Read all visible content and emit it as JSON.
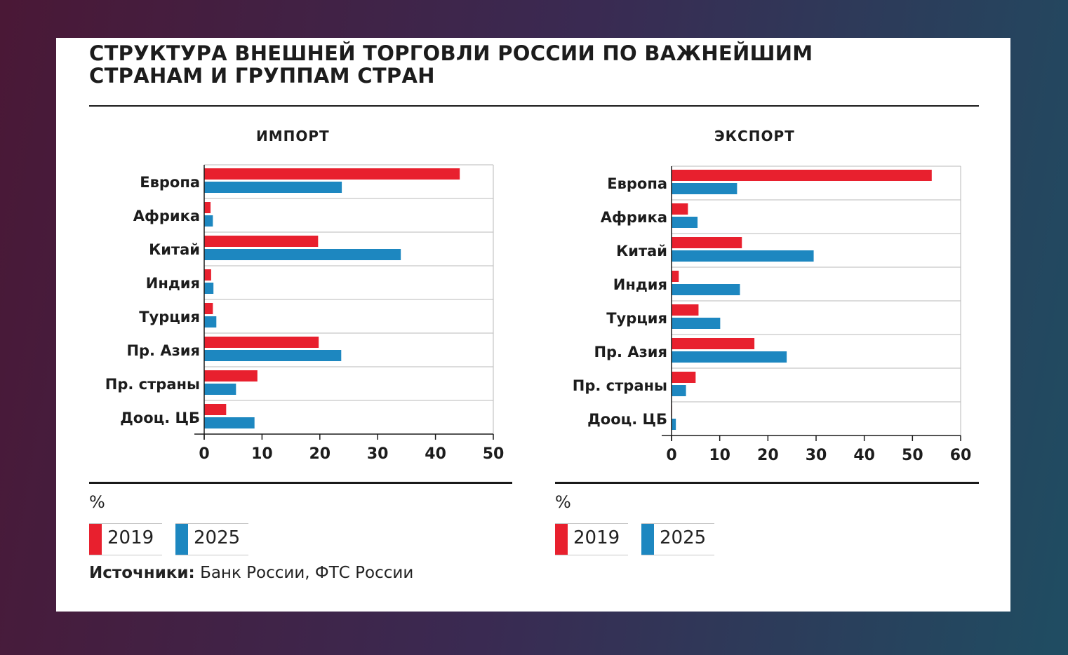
{
  "title": "СТРУКТУРА ВНЕШНЕЙ ТОРГОВЛИ РОССИИ ПО ВАЖНЕЙШИМ СТРАНАМ И ГРУППАМ СТРАН",
  "unit": "%",
  "source_label": "Источники:",
  "source_text": "Банк России, ФТС России",
  "colors": {
    "y2019": "#e8202e",
    "y2025": "#1d87c0"
  },
  "legend": [
    {
      "label": "2019",
      "color": "#e8202e"
    },
    {
      "label": "2025",
      "color": "#1d87c0"
    }
  ],
  "chart_data": [
    {
      "type": "bar",
      "orientation": "horizontal",
      "title": "ИМПОРТ",
      "categories": [
        "Европа",
        "Африка",
        "Китай",
        "Индия",
        "Турция",
        "Пр. Азия",
        "Пр. страны",
        "Дооц. ЦБ"
      ],
      "series": [
        {
          "name": "2019",
          "values": [
            44.2,
            1.1,
            19.7,
            1.2,
            1.5,
            19.8,
            9.2,
            3.8
          ]
        },
        {
          "name": "2025",
          "values": [
            23.8,
            1.5,
            34.0,
            1.6,
            2.1,
            23.7,
            5.5,
            8.7
          ]
        }
      ],
      "xlim": [
        0,
        50
      ],
      "xticks": [
        "0",
        "10",
        "20",
        "30",
        "40",
        "50"
      ],
      "grid": "horizontal",
      "legend": "bottom-left"
    },
    {
      "type": "bar",
      "orientation": "horizontal",
      "title": "ЭКСПОРТ",
      "categories": [
        "Европа",
        "Африка",
        "Китай",
        "Индия",
        "Турция",
        "Пр. Азия",
        "Пр. страны",
        "Дооц. ЦБ"
      ],
      "series": [
        {
          "name": "2019",
          "values": [
            54.0,
            3.4,
            14.6,
            1.5,
            5.6,
            17.2,
            5.0,
            0.1
          ]
        },
        {
          "name": "2025",
          "values": [
            13.6,
            5.4,
            29.5,
            14.2,
            10.1,
            23.9,
            3.0,
            0.9
          ]
        }
      ],
      "xlim": [
        0,
        60
      ],
      "xticks": [
        "0",
        "10",
        "20",
        "30",
        "40",
        "50",
        "60"
      ],
      "grid": "horizontal",
      "legend": "bottom-left"
    }
  ]
}
